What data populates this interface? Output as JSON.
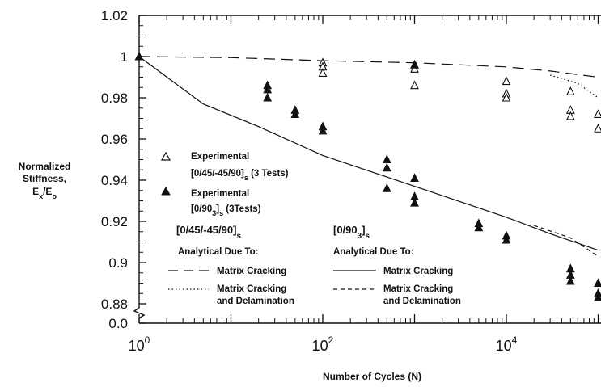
{
  "chart_data": {
    "type": "scatter",
    "title": "",
    "xlabel": "Number of Cycles (N)",
    "ylabel_lines": [
      "Normalized",
      "Stiffness,",
      "Ex/Eo"
    ],
    "x_scale": "log",
    "xlim": [
      1,
      100000
    ],
    "x_ticks": [
      {
        "value": 1,
        "base": "10",
        "exp": "0"
      },
      {
        "value": 100,
        "base": "10",
        "exp": "2"
      },
      {
        "value": 10000,
        "base": "10",
        "exp": "4"
      }
    ],
    "ylim": [
      0.88,
      1.02
    ],
    "y_ticks": [
      "1.02",
      "1",
      "0.98",
      "0.96",
      "0.94",
      "0.92",
      "0.9",
      "0.88",
      "0.0"
    ],
    "y_axis_break": true,
    "grid": false,
    "series": [
      {
        "name": "Experimental [0/45/-45/90]s (3 Tests)",
        "marker": "open-triangle",
        "points": [
          [
            1,
            1.0
          ],
          [
            100,
            0.997
          ],
          [
            100,
            0.995
          ],
          [
            100,
            0.992
          ],
          [
            1000,
            0.996
          ],
          [
            1000,
            0.994
          ],
          [
            1000,
            0.986
          ],
          [
            10000,
            0.988
          ],
          [
            10000,
            0.982
          ],
          [
            10000,
            0.98
          ],
          [
            50000,
            0.983
          ],
          [
            50000,
            0.974
          ],
          [
            50000,
            0.971
          ],
          [
            100000,
            0.972
          ],
          [
            100000,
            0.965
          ]
        ]
      },
      {
        "name": "Experimental [0/90_3]s (3Tests)",
        "marker": "filled-triangle",
        "points": [
          [
            1,
            1.0
          ],
          [
            25,
            0.986
          ],
          [
            25,
            0.984
          ],
          [
            25,
            0.98
          ],
          [
            50,
            0.974
          ],
          [
            50,
            0.972
          ],
          [
            100,
            0.966
          ],
          [
            100,
            0.964
          ],
          [
            500,
            0.95
          ],
          [
            500,
            0.946
          ],
          [
            500,
            0.936
          ],
          [
            1000,
            0.996
          ],
          [
            1000,
            0.941
          ],
          [
            1000,
            0.932
          ],
          [
            1000,
            0.929
          ],
          [
            5000,
            0.919
          ],
          [
            5000,
            0.917
          ],
          [
            10000,
            0.913
          ],
          [
            10000,
            0.911
          ],
          [
            50000,
            0.897
          ],
          [
            50000,
            0.894
          ],
          [
            50000,
            0.891
          ],
          [
            100000,
            0.89
          ],
          [
            100000,
            0.885
          ],
          [
            100000,
            0.883
          ]
        ]
      },
      {
        "name": "[0/45/-45/90]s Analytical Due To: Matrix Cracking",
        "line_style": "long-dash",
        "points": [
          [
            1,
            1.0
          ],
          [
            10,
            0.9995
          ],
          [
            100,
            0.998
          ],
          [
            1000,
            0.997
          ],
          [
            10000,
            0.995
          ],
          [
            30000,
            0.993
          ],
          [
            100000,
            0.99
          ]
        ]
      },
      {
        "name": "[0/45/-45/90]s Analytical Due To: Matrix Cracking and Delamination",
        "line_style": "dotted",
        "points": [
          [
            30000,
            0.991
          ],
          [
            60000,
            0.987
          ],
          [
            100000,
            0.98
          ]
        ]
      },
      {
        "name": "[0/90_3]s Analytical Due To: Matrix Cracking",
        "line_style": "solid",
        "points": [
          [
            1,
            1.0
          ],
          [
            5,
            0.977
          ],
          [
            20,
            0.966
          ],
          [
            100,
            0.952
          ],
          [
            1000,
            0.937
          ],
          [
            10000,
            0.922
          ],
          [
            30000,
            0.914
          ],
          [
            100000,
            0.906
          ]
        ]
      },
      {
        "name": "[0/90_3]s Analytical Due To: Matrix Cracking and Delamination",
        "line_style": "short-dash",
        "points": [
          [
            20000,
            0.918
          ],
          [
            50000,
            0.912
          ],
          [
            100000,
            0.903
          ]
        ]
      }
    ],
    "legend": {
      "placement": "lower-left",
      "markers": [
        {
          "line1": "Experimental",
          "line2_pre": "[0/45/-45/90]",
          "line2_sub": "s",
          "line2_post": " (3 Tests)"
        },
        {
          "line1": "Experimental",
          "line2_pre": "[0/90",
          "line2_sub3": "3",
          "line2_mid": "]",
          "line2_sub": "s",
          "line2_post": " (3Tests)"
        }
      ],
      "group_left": {
        "heading_pre": "[0/45/-45/90]",
        "heading_sub": "s",
        "analytical": "Analytical Due To:",
        "item1": "Matrix Cracking",
        "item2_line1": "Matrix Cracking",
        "item2_line2": "and Delamination"
      },
      "group_right": {
        "heading_pre": "[0/90",
        "heading_sub3": "3",
        "heading_mid": "]",
        "heading_sub": "s",
        "analytical": "Analytical  Due  To:",
        "item1": "Matrix Cracking",
        "item2_line1": "Matrix Cracking",
        "item2_line2": "and Delamination"
      }
    }
  }
}
